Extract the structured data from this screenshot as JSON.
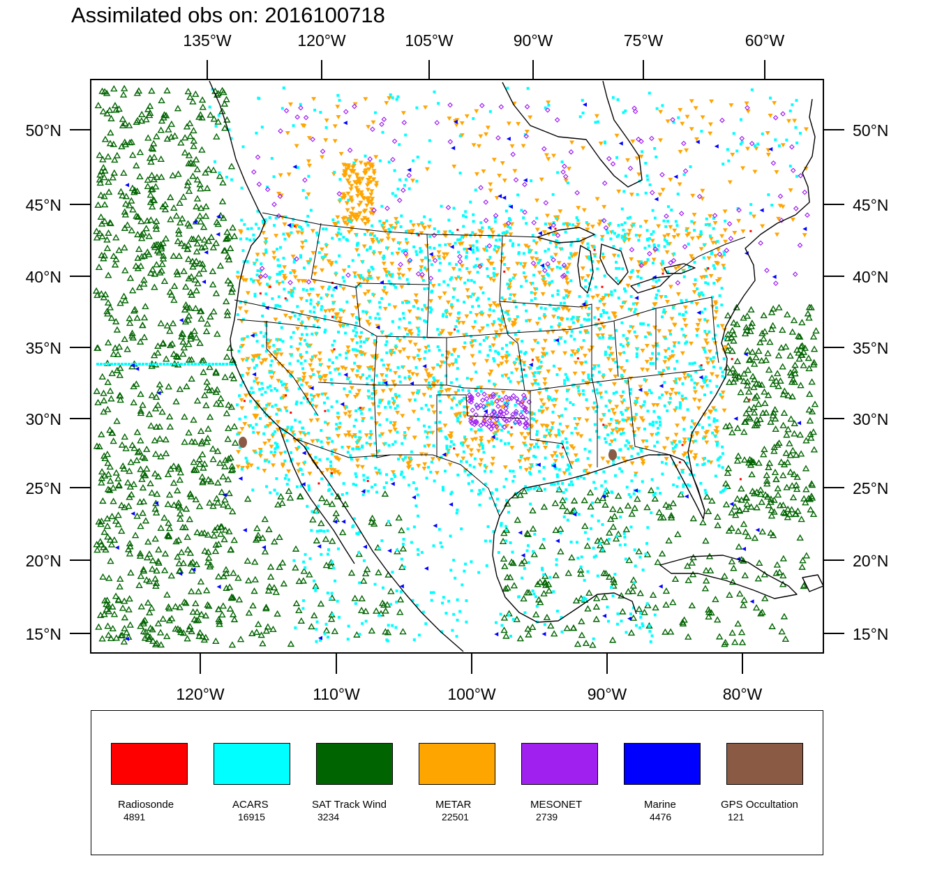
{
  "title": "Assimilated obs on: 2016100718",
  "top_axis_labels": [
    "135°W",
    "120°W",
    "105°W",
    "90°W",
    "75°W",
    "60°W"
  ],
  "bottom_axis_labels": [
    "120°W",
    "110°W",
    "100°W",
    "90°W",
    "80°W"
  ],
  "lat_labels": [
    "50°N",
    "45°N",
    "40°N",
    "35°N",
    "30°N",
    "25°N",
    "20°N",
    "15°N"
  ],
  "legend": [
    {
      "name": "Radiosonde",
      "count": "4891",
      "color": "#ff0000"
    },
    {
      "name": "ACARS",
      "count": "16915",
      "color": "#00ffff"
    },
    {
      "name": "SAT Track Wind",
      "count": "3234",
      "color": "#006400"
    },
    {
      "name": "METAR",
      "count": "22501",
      "color": "#ffa500"
    },
    {
      "name": "MESONET",
      "count": "2739",
      "color": "#a020f0"
    },
    {
      "name": "Marine",
      "count": "4476",
      "color": "#0000ff"
    },
    {
      "name": "GPS Occultation",
      "count": "121",
      "color": "#8b5a44"
    }
  ]
}
